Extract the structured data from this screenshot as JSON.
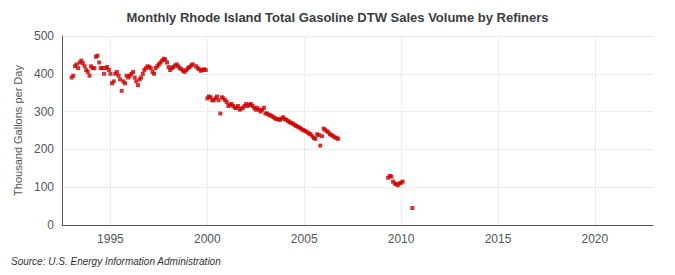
{
  "chart_data": {
    "type": "scatter",
    "title": "Monthly Rhode Island Total Gasoline DTW Sales Volume by Refiners",
    "ylabel": "Thousand Gallons per Day",
    "annotation": "Source: U.S. Energy Information Administration",
    "color": "#cc0000",
    "marker": "square",
    "grid": true,
    "xlim": [
      1992.5,
      2023.0
    ],
    "ylim": [
      0,
      500
    ],
    "xticks": [
      1995,
      2000,
      2005,
      2010,
      2015,
      2020
    ],
    "yticks": [
      0,
      100,
      200,
      300,
      400,
      500
    ],
    "x": [
      1993.0,
      1993.08,
      1993.17,
      1993.25,
      1993.33,
      1993.42,
      1993.5,
      1993.58,
      1993.67,
      1993.75,
      1993.83,
      1993.92,
      1994.0,
      1994.08,
      1994.17,
      1994.25,
      1994.33,
      1994.42,
      1994.5,
      1994.58,
      1994.67,
      1994.75,
      1994.83,
      1994.92,
      1995.0,
      1995.08,
      1995.17,
      1995.25,
      1995.33,
      1995.42,
      1995.5,
      1995.58,
      1995.67,
      1995.75,
      1995.83,
      1995.92,
      1996.0,
      1996.08,
      1996.17,
      1996.25,
      1996.33,
      1996.42,
      1996.5,
      1996.58,
      1996.67,
      1996.75,
      1996.83,
      1996.92,
      1997.0,
      1997.08,
      1997.17,
      1997.25,
      1997.33,
      1997.42,
      1997.5,
      1997.58,
      1997.67,
      1997.75,
      1997.83,
      1997.92,
      1998.0,
      1998.08,
      1998.17,
      1998.25,
      1998.33,
      1998.42,
      1998.5,
      1998.58,
      1998.67,
      1998.75,
      1998.83,
      1998.92,
      1999.0,
      1999.08,
      1999.17,
      1999.25,
      1999.42,
      1999.5,
      1999.58,
      1999.67,
      1999.75,
      1999.83,
      1999.92,
      2000.0,
      2000.08,
      2000.17,
      2000.25,
      2000.33,
      2000.42,
      2000.5,
      2000.58,
      2000.67,
      2000.75,
      2000.83,
      2000.92,
      2001.0,
      2001.08,
      2001.17,
      2001.25,
      2001.33,
      2001.42,
      2001.5,
      2001.58,
      2001.67,
      2001.75,
      2001.83,
      2001.92,
      2002.0,
      2002.08,
      2002.17,
      2002.25,
      2002.33,
      2002.42,
      2002.5,
      2002.58,
      2002.67,
      2002.75,
      2002.83,
      2002.92,
      2003.0,
      2003.08,
      2003.17,
      2003.25,
      2003.33,
      2003.42,
      2003.5,
      2003.58,
      2003.67,
      2003.75,
      2003.83,
      2003.92,
      2004.0,
      2004.08,
      2004.17,
      2004.25,
      2004.33,
      2004.42,
      2004.5,
      2004.58,
      2004.67,
      2004.75,
      2004.83,
      2004.92,
      2005.0,
      2005.08,
      2005.17,
      2005.25,
      2005.33,
      2005.42,
      2005.5,
      2005.58,
      2005.67,
      2005.75,
      2005.83,
      2005.92,
      2006.0,
      2006.08,
      2006.17,
      2006.25,
      2006.33,
      2006.42,
      2006.5,
      2006.58,
      2006.67,
      2006.75,
      2009.33,
      2009.42,
      2009.5,
      2009.58,
      2009.67,
      2009.75,
      2009.83,
      2009.92,
      2010.0,
      2010.08,
      2010.58
    ],
    "values": [
      390,
      395,
      420,
      425,
      415,
      430,
      435,
      428,
      420,
      410,
      405,
      395,
      420,
      415,
      415,
      445,
      448,
      430,
      415,
      415,
      400,
      415,
      418,
      410,
      400,
      375,
      380,
      400,
      405,
      395,
      385,
      355,
      380,
      375,
      395,
      390,
      395,
      400,
      405,
      390,
      380,
      370,
      385,
      390,
      400,
      410,
      415,
      420,
      418,
      415,
      405,
      400,
      415,
      420,
      425,
      430,
      435,
      440,
      438,
      430,
      418,
      410,
      415,
      418,
      422,
      425,
      420,
      415,
      412,
      408,
      405,
      410,
      415,
      418,
      422,
      425,
      420,
      415,
      412,
      408,
      410,
      412,
      410,
      335,
      340,
      338,
      330,
      330,
      335,
      340,
      330,
      295,
      338,
      335,
      330,
      325,
      315,
      318,
      320,
      315,
      310,
      310,
      315,
      305,
      308,
      310,
      315,
      320,
      315,
      318,
      320,
      315,
      310,
      305,
      310,
      305,
      300,
      305,
      310,
      295,
      295,
      292,
      290,
      288,
      285,
      282,
      280,
      280,
      278,
      282,
      285,
      280,
      278,
      275,
      272,
      270,
      268,
      265,
      262,
      260,
      258,
      255,
      252,
      250,
      248,
      245,
      242,
      240,
      235,
      230,
      228,
      240,
      238,
      210,
      235,
      255,
      252,
      248,
      245,
      240,
      238,
      235,
      232,
      230,
      228,
      125,
      130,
      128,
      115,
      110,
      108,
      105,
      110,
      112,
      115,
      45
    ]
  }
}
